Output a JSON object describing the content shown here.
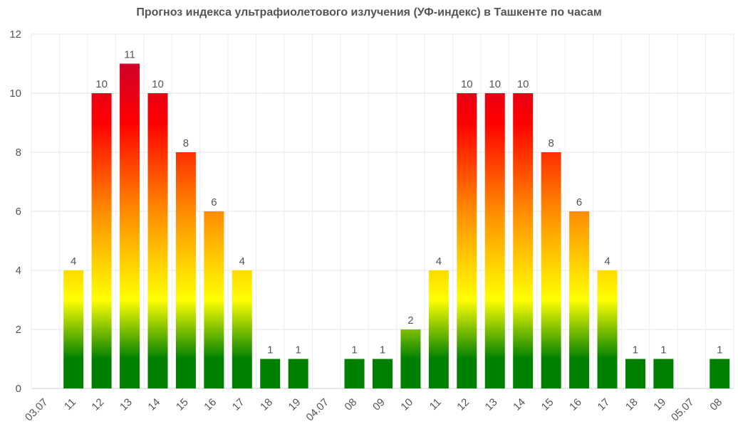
{
  "chart_data": {
    "type": "bar",
    "title": "Прогноз индекса ультрафиолетового излучения (УФ-индекс) в Ташкенте по часам",
    "xlabel": "",
    "ylabel": "",
    "ylim": [
      0,
      12
    ],
    "yticks": [
      0,
      2,
      4,
      6,
      8,
      10,
      12
    ],
    "grid": true,
    "categories": [
      "03.07",
      "11",
      "12",
      "13",
      "14",
      "15",
      "16",
      "17",
      "18",
      "19",
      "04.07",
      "08",
      "09",
      "10",
      "11",
      "12",
      "13",
      "14",
      "15",
      "16",
      "17",
      "18",
      "19",
      "05.07",
      "08"
    ],
    "values": [
      null,
      4,
      10,
      11,
      10,
      8,
      6,
      4,
      1,
      1,
      null,
      1,
      1,
      2,
      4,
      10,
      10,
      10,
      8,
      6,
      4,
      1,
      1,
      null,
      1
    ],
    "colors": {
      "low": "#008000",
      "moderate": "#ffff00",
      "high": "#ff8c00",
      "very_high": "#ff0000",
      "extreme": "#d0002a"
    }
  }
}
